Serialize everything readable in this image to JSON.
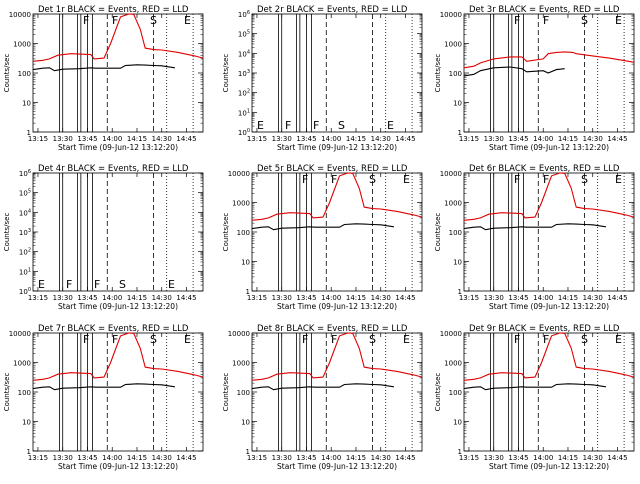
{
  "figure": {
    "xlabel": "Start Time (09-Jun-12 13:12:20)",
    "ylabel": "Counts/sec",
    "x_ticks": [
      "13:15",
      "13:30",
      "13:45",
      "14:00",
      "14:15",
      "14:30",
      "14:45"
    ]
  },
  "colors": {
    "events": "#000000",
    "lld": "#e00000",
    "axis": "#000000"
  },
  "chart_data": [
    {
      "type": "line",
      "title": "Det 1r  BLACK = Events, RED = LLD",
      "yscale": "log",
      "ylim": [
        1,
        10000
      ],
      "y_ticks": [
        "1",
        "10",
        "100",
        "1000",
        "10000"
      ],
      "xlim": [
        "13:12",
        "14:55"
      ],
      "markers": [
        "F",
        "F",
        "S",
        "E"
      ],
      "has_data": true,
      "flare": true,
      "series": [
        {
          "name": "Events",
          "x": [
            "13:12",
            "13:18",
            "13:22",
            "13:25",
            "13:30",
            "13:40",
            "13:47",
            "13:50",
            "14:05",
            "14:08",
            "14:15",
            "14:20",
            "14:25",
            "14:30",
            "14:38"
          ],
          "values": [
            130,
            145,
            150,
            120,
            135,
            140,
            150,
            145,
            145,
            180,
            190,
            185,
            180,
            175,
            150
          ]
        },
        {
          "name": "LLD",
          "x": [
            "13:12",
            "13:18",
            "13:22",
            "13:27",
            "13:35",
            "13:47",
            "13:49",
            "13:55",
            "13:59",
            "14:05",
            "14:10",
            "14:13",
            "14:17",
            "14:20",
            "14:25",
            "14:30",
            "14:40",
            "14:50",
            "14:55"
          ],
          "values": [
            250,
            270,
            300,
            400,
            450,
            420,
            300,
            320,
            1000,
            8000,
            10000,
            9800,
            3000,
            700,
            620,
            600,
            500,
            380,
            320
          ]
        }
      ]
    },
    {
      "type": "line",
      "title": "Det 2r  BLACK = Events, RED = LLD",
      "yscale": "log",
      "ylim": [
        1,
        1000000
      ],
      "y_ticks": [
        "10^0",
        "10^1",
        "10^2",
        "10^3",
        "10^4",
        "10^5",
        "10^6"
      ],
      "xlim": [
        "13:12",
        "14:55"
      ],
      "markers": [
        "E",
        "F",
        "F",
        "S",
        "E"
      ],
      "has_data": false,
      "flare": false,
      "series": []
    },
    {
      "type": "line",
      "title": "Det 3r  BLACK = Events, RED = LLD",
      "yscale": "log",
      "ylim": [
        1,
        10000
      ],
      "y_ticks": [
        "1",
        "10",
        "100",
        "1000",
        "10000"
      ],
      "xlim": [
        "13:12",
        "14:55"
      ],
      "markers": [
        "F",
        "F",
        "S",
        "E"
      ],
      "has_data": true,
      "flare": false,
      "series": [
        {
          "name": "Events",
          "x": [
            "13:12",
            "13:18",
            "13:22",
            "13:30",
            "13:40",
            "13:47",
            "13:50",
            "14:00",
            "14:03",
            "14:08",
            "14:13"
          ],
          "values": [
            80,
            90,
            120,
            150,
            160,
            140,
            110,
            120,
            100,
            130,
            140
          ]
        },
        {
          "name": "LLD",
          "x": [
            "13:12",
            "13:18",
            "13:22",
            "13:30",
            "13:40",
            "13:47",
            "13:50",
            "14:00",
            "14:03",
            "14:08",
            "14:13",
            "14:18",
            "14:20",
            "14:30",
            "14:40",
            "14:50",
            "14:55"
          ],
          "values": [
            150,
            170,
            220,
            300,
            350,
            350,
            250,
            300,
            450,
            500,
            520,
            500,
            450,
            380,
            320,
            260,
            230
          ]
        }
      ]
    },
    {
      "type": "line",
      "title": "Det 4r  BLACK = Events, RED = LLD",
      "yscale": "log",
      "ylim": [
        1,
        1000000
      ],
      "y_ticks": [
        "10^0",
        "10^1",
        "10^2",
        "10^3",
        "10^4",
        "10^5",
        "10^6"
      ],
      "xlim": [
        "13:12",
        "14:55"
      ],
      "markers": [
        "E",
        "F",
        "F",
        "S",
        "E"
      ],
      "has_data": false,
      "flare": false,
      "series": []
    },
    {
      "type": "line",
      "title": "Det 5r  BLACK = Events, RED = LLD",
      "yscale": "log",
      "ylim": [
        1,
        10000
      ],
      "y_ticks": [
        "1",
        "10",
        "100",
        "1000",
        "10000"
      ],
      "xlim": [
        "13:12",
        "14:55"
      ],
      "markers": [
        "F",
        "F",
        "S",
        "E"
      ],
      "has_data": true,
      "flare": true,
      "series": [
        {
          "name": "Events",
          "x": [
            "13:12",
            "13:18",
            "13:22",
            "13:25",
            "13:30",
            "13:40",
            "13:47",
            "13:50",
            "14:05",
            "14:08",
            "14:15",
            "14:20",
            "14:25",
            "14:30",
            "14:38"
          ],
          "values": [
            130,
            145,
            150,
            120,
            135,
            140,
            150,
            145,
            145,
            180,
            190,
            185,
            180,
            175,
            150
          ]
        },
        {
          "name": "LLD",
          "x": [
            "13:12",
            "13:18",
            "13:22",
            "13:27",
            "13:35",
            "13:47",
            "13:49",
            "13:55",
            "13:59",
            "14:05",
            "14:10",
            "14:13",
            "14:17",
            "14:20",
            "14:25",
            "14:30",
            "14:40",
            "14:50",
            "14:55"
          ],
          "values": [
            250,
            270,
            300,
            400,
            450,
            420,
            300,
            320,
            1000,
            8000,
            10000,
            9800,
            3000,
            700,
            620,
            600,
            500,
            380,
            320
          ]
        }
      ]
    },
    {
      "type": "line",
      "title": "Det 6r  BLACK = Events, RED = LLD",
      "yscale": "log",
      "ylim": [
        1,
        10000
      ],
      "y_ticks": [
        "1",
        "10",
        "100",
        "1000",
        "10000"
      ],
      "xlim": [
        "13:12",
        "14:55"
      ],
      "markers": [
        "F",
        "F",
        "S",
        "E"
      ],
      "has_data": true,
      "flare": true,
      "series": [
        {
          "name": "Events",
          "x": [
            "13:12",
            "13:18",
            "13:22",
            "13:25",
            "13:30",
            "13:40",
            "13:47",
            "13:50",
            "14:05",
            "14:08",
            "14:15",
            "14:20",
            "14:25",
            "14:30",
            "14:38"
          ],
          "values": [
            130,
            145,
            150,
            120,
            135,
            140,
            150,
            145,
            145,
            180,
            190,
            185,
            180,
            175,
            150
          ]
        },
        {
          "name": "LLD",
          "x": [
            "13:12",
            "13:18",
            "13:22",
            "13:27",
            "13:35",
            "13:47",
            "13:49",
            "13:55",
            "13:59",
            "14:05",
            "14:10",
            "14:13",
            "14:17",
            "14:20",
            "14:25",
            "14:30",
            "14:40",
            "14:50",
            "14:55"
          ],
          "values": [
            250,
            270,
            300,
            400,
            450,
            420,
            300,
            320,
            1000,
            8000,
            10000,
            9800,
            3000,
            700,
            620,
            600,
            500,
            380,
            320
          ]
        }
      ]
    },
    {
      "type": "line",
      "title": "Det 7r  BLACK = Events, RED = LLD",
      "yscale": "log",
      "ylim": [
        1,
        10000
      ],
      "y_ticks": [
        "1",
        "10",
        "100",
        "1000",
        "10000"
      ],
      "xlim": [
        "13:12",
        "14:55"
      ],
      "markers": [
        "F",
        "F",
        "S",
        "E"
      ],
      "has_data": true,
      "flare": true,
      "series": [
        {
          "name": "Events",
          "x": [
            "13:12",
            "13:18",
            "13:22",
            "13:25",
            "13:30",
            "13:40",
            "13:47",
            "13:50",
            "14:05",
            "14:08",
            "14:15",
            "14:20",
            "14:25",
            "14:30",
            "14:38"
          ],
          "values": [
            130,
            145,
            150,
            120,
            135,
            140,
            150,
            145,
            145,
            180,
            190,
            185,
            180,
            175,
            150
          ]
        },
        {
          "name": "LLD",
          "x": [
            "13:12",
            "13:18",
            "13:22",
            "13:27",
            "13:35",
            "13:47",
            "13:49",
            "13:55",
            "13:59",
            "14:05",
            "14:10",
            "14:13",
            "14:17",
            "14:20",
            "14:25",
            "14:30",
            "14:40",
            "14:50",
            "14:55"
          ],
          "values": [
            250,
            270,
            300,
            400,
            450,
            420,
            300,
            320,
            1000,
            8000,
            10000,
            9800,
            3000,
            700,
            620,
            600,
            500,
            380,
            320
          ]
        }
      ]
    },
    {
      "type": "line",
      "title": "Det 8r  BLACK = Events, RED = LLD",
      "yscale": "log",
      "ylim": [
        1,
        10000
      ],
      "y_ticks": [
        "1",
        "10",
        "100",
        "1000",
        "10000"
      ],
      "xlim": [
        "13:12",
        "14:55"
      ],
      "markers": [
        "F",
        "F",
        "S",
        "E"
      ],
      "has_data": true,
      "flare": true,
      "series": [
        {
          "name": "Events",
          "x": [
            "13:12",
            "13:18",
            "13:22",
            "13:25",
            "13:30",
            "13:40",
            "13:47",
            "13:50",
            "14:05",
            "14:08",
            "14:15",
            "14:20",
            "14:25",
            "14:30",
            "14:38"
          ],
          "values": [
            130,
            145,
            150,
            120,
            135,
            140,
            150,
            145,
            145,
            180,
            190,
            185,
            180,
            175,
            150
          ]
        },
        {
          "name": "LLD",
          "x": [
            "13:12",
            "13:18",
            "13:22",
            "13:27",
            "13:35",
            "13:47",
            "13:49",
            "13:55",
            "13:59",
            "14:05",
            "14:10",
            "14:13",
            "14:17",
            "14:20",
            "14:25",
            "14:30",
            "14:40",
            "14:50",
            "14:55"
          ],
          "values": [
            250,
            270,
            300,
            400,
            450,
            420,
            300,
            320,
            1000,
            8000,
            10000,
            9800,
            3000,
            700,
            620,
            600,
            500,
            380,
            320
          ]
        }
      ]
    },
    {
      "type": "line",
      "title": "Det 9r  BLACK = Events, RED = LLD",
      "yscale": "log",
      "ylim": [
        1,
        10000
      ],
      "y_ticks": [
        "1",
        "10",
        "100",
        "1000",
        "10000"
      ],
      "xlim": [
        "13:12",
        "14:55"
      ],
      "markers": [
        "F",
        "F",
        "S",
        "E"
      ],
      "has_data": true,
      "flare": true,
      "series": [
        {
          "name": "Events",
          "x": [
            "13:12",
            "13:18",
            "13:22",
            "13:25",
            "13:30",
            "13:40",
            "13:47",
            "13:50",
            "14:05",
            "14:08",
            "14:15",
            "14:20",
            "14:25",
            "14:30",
            "14:38"
          ],
          "values": [
            130,
            145,
            150,
            120,
            135,
            140,
            150,
            145,
            145,
            180,
            190,
            185,
            180,
            175,
            150
          ]
        },
        {
          "name": "LLD",
          "x": [
            "13:12",
            "13:18",
            "13:22",
            "13:27",
            "13:35",
            "13:47",
            "13:49",
            "13:55",
            "13:59",
            "14:05",
            "14:10",
            "14:13",
            "14:17",
            "14:20",
            "14:25",
            "14:30",
            "14:40",
            "14:50",
            "14:55"
          ],
          "values": [
            250,
            270,
            300,
            400,
            450,
            420,
            300,
            320,
            1000,
            8000,
            10000,
            9800,
            3000,
            700,
            620,
            600,
            500,
            380,
            320
          ]
        }
      ]
    }
  ]
}
